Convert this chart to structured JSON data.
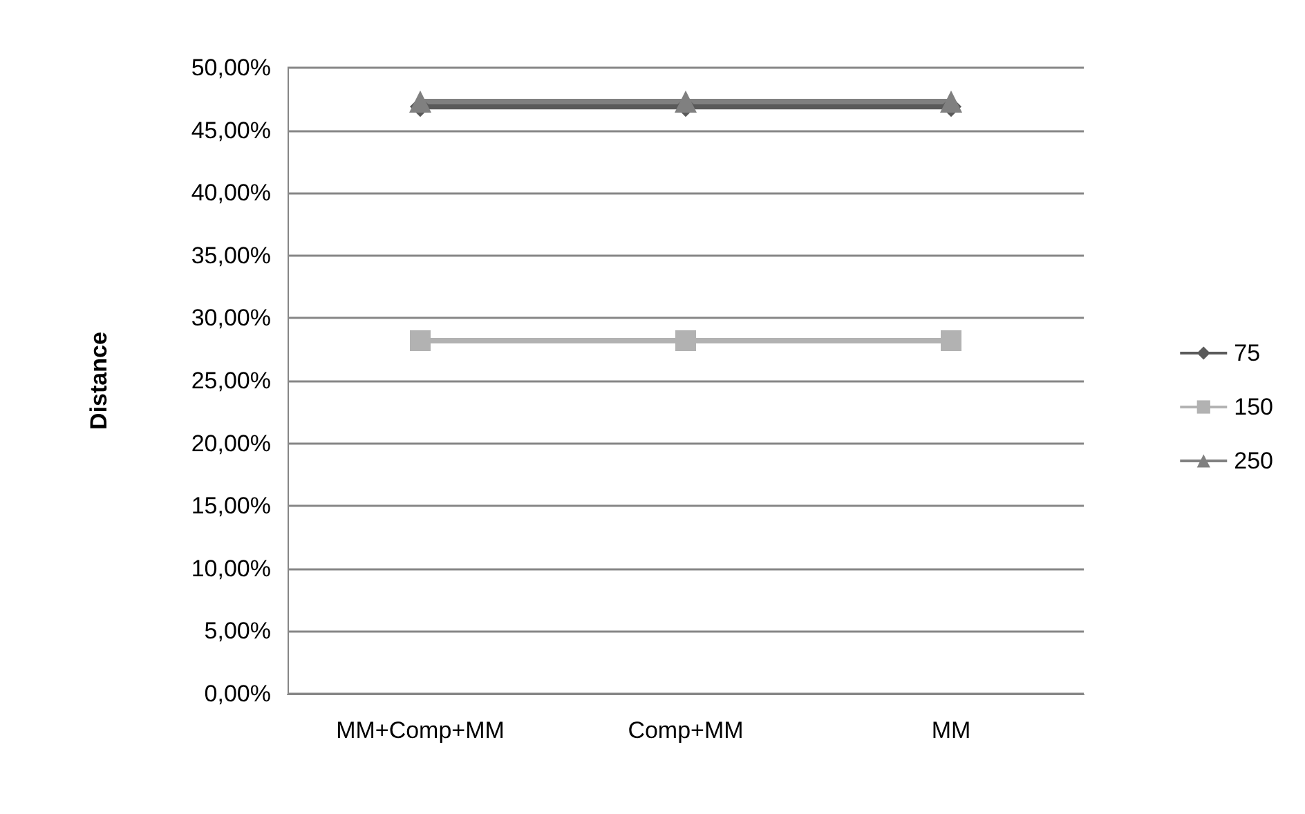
{
  "chart_data": {
    "type": "line",
    "ylabel": "Distance",
    "categories": [
      "MM+Comp+MM",
      "Comp+MM",
      "MM"
    ],
    "series": [
      {
        "name": "75",
        "color": "#5a5a5a",
        "marker": "diamond",
        "values": [
          46.9,
          46.9,
          46.9
        ]
      },
      {
        "name": "150",
        "color": "#b2b2b2",
        "marker": "square",
        "values": [
          28.2,
          28.2,
          28.2
        ]
      },
      {
        "name": "250",
        "color": "#808080",
        "marker": "triangle",
        "values": [
          47.3,
          47.3,
          47.3
        ]
      }
    ],
    "ylim": [
      0,
      50
    ],
    "yticks": [
      {
        "value": 0,
        "label": "0,00%"
      },
      {
        "value": 5,
        "label": "5,00%"
      },
      {
        "value": 10,
        "label": "10,00%"
      },
      {
        "value": 15,
        "label": "15,00%"
      },
      {
        "value": 20,
        "label": "20,00%"
      },
      {
        "value": 25,
        "label": "25,00%"
      },
      {
        "value": 30,
        "label": "30,00%"
      },
      {
        "value": 35,
        "label": "35,00%"
      },
      {
        "value": 40,
        "label": "40,00%"
      },
      {
        "value": 45,
        "label": "45,00%"
      },
      {
        "value": 50,
        "label": "50,00%"
      }
    ],
    "grid": "y",
    "legend": "right"
  }
}
